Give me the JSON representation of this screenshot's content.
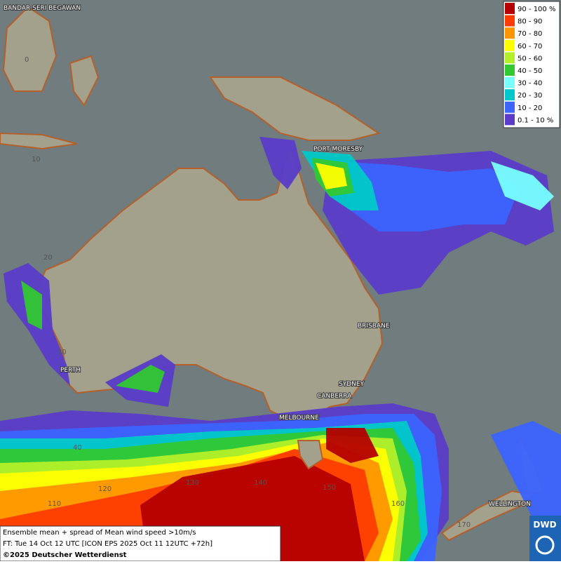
{
  "legend": {
    "items": [
      {
        "label": "90 - 100 %",
        "color": "#b40000"
      },
      {
        "label": "80 - 90",
        "color": "#ff3c00"
      },
      {
        "label": "70 - 80",
        "color": "#ff9600"
      },
      {
        "label": "60 - 70",
        "color": "#ffff00"
      },
      {
        "label": "50 - 60",
        "color": "#b4f02a"
      },
      {
        "label": "40 - 50",
        "color": "#32c832"
      },
      {
        "label": "30 - 40",
        "color": "#78ffff"
      },
      {
        "label": "20 - 30",
        "color": "#00c8c8"
      },
      {
        "label": "10 - 20",
        "color": "#3c64ff"
      },
      {
        "label": "0.1 - 10 %",
        "color": "#5a3cc8"
      }
    ]
  },
  "cities": [
    "BANDAR SERI BEGAWAN",
    "PORT MORESBY",
    "BRISBANE",
    "PERTH",
    "SYDNEY",
    "CANBERRA",
    "MELBOURNE",
    "WELLINGTON"
  ],
  "grid_labels": [
    "0",
    "10",
    "20",
    "30",
    "40",
    "110",
    "120",
    "130",
    "140",
    "150",
    "160",
    "170"
  ],
  "footer": {
    "line1": "Ensemble mean + spread of Mean wind speed >10m/s",
    "line2": "FT: Tue 14 Oct 12 UTC [ICON EPS 2025 Oct 11 12UTC +72h]",
    "line3": "©2025 Deutscher Wetterdienst"
  },
  "logo": "DWD"
}
